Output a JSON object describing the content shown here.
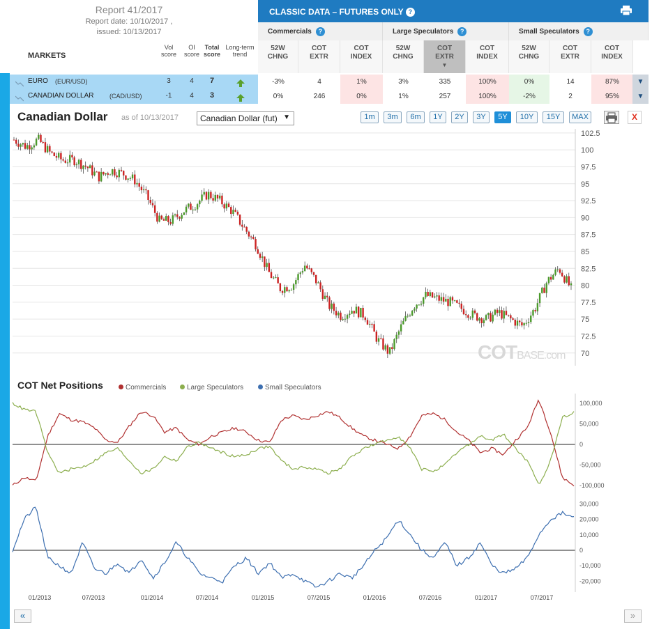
{
  "report": {
    "title": "Report 41/2017",
    "report_date": "Report date: 10/10/2017 ,",
    "issued": "issued: 10/13/2017"
  },
  "markets_label": "MARKETS",
  "left_columns": [
    {
      "l1": "Vol",
      "l2": "score"
    },
    {
      "l1": "OI",
      "l2": "score"
    },
    {
      "l1": "Total",
      "l2": "score"
    },
    {
      "l1": "Long-term",
      "l2": "trend"
    }
  ],
  "header": {
    "title": "CLASSIC DATA – FUTURES ONLY",
    "help": "?",
    "groups": [
      "Commercials",
      "Large Speculators",
      "Small Speculators"
    ],
    "subcolumns": [
      {
        "l1": "52W",
        "l2": "CHNG"
      },
      {
        "l1": "COT",
        "l2": "EXTR"
      },
      {
        "l1": "COT",
        "l2": "INDEX"
      },
      {
        "l1": "52W",
        "l2": "CHNG"
      },
      {
        "l1": "COT",
        "l2": "EXTR"
      },
      {
        "l1": "COT",
        "l2": "INDEX"
      },
      {
        "l1": "52W",
        "l2": "CHNG"
      },
      {
        "l1": "COT",
        "l2": "EXTR"
      },
      {
        "l1": "COT",
        "l2": "INDEX"
      }
    ]
  },
  "rows": [
    {
      "name": "EURO",
      "code": "(EUR/USD)",
      "vol": "3",
      "oi": "4",
      "total": "7",
      "trend": "up",
      "cells": [
        "-3%",
        "4",
        "1%",
        "3%",
        "335",
        "100%",
        "0%",
        "14",
        "87%"
      ]
    },
    {
      "name": "CANADIAN DOLLAR",
      "code": "(CAD/USD)",
      "vol": "-1",
      "oi": "4",
      "total": "3",
      "trend": "up",
      "cells": [
        "0%",
        "246",
        "0%",
        "1%",
        "257",
        "100%",
        "-2%",
        "2",
        "95%"
      ]
    }
  ],
  "chart_panel": {
    "title": "Canadian Dollar",
    "as_of": "as of 10/13/2017",
    "select_value": "Canadian Dollar (fut)",
    "ranges": [
      "1m",
      "3m",
      "6m",
      "1Y",
      "2Y",
      "3Y",
      "5Y",
      "10Y",
      "15Y",
      "MAX"
    ],
    "active_range": "5Y",
    "close": "X",
    "watermark_main": "COT",
    "watermark_sub": "BASE.com"
  },
  "colors": {
    "commercials": "#b03030",
    "large": "#8cae4e",
    "small": "#3d6fb0",
    "up_candle": "#4a9a2a",
    "down_candle": "#cc2222",
    "sidebar": "#1aa8e6",
    "header_blue": "#1f7bc1"
  },
  "nav": {
    "prev": "«",
    "next": "»"
  },
  "chart_data": [
    {
      "type": "line",
      "title": "Canadian Dollar",
      "ylabel": "",
      "y_ticks": [
        "102.5",
        "100",
        "97.5",
        "95",
        "92.5",
        "90",
        "87.5",
        "85",
        "82.5",
        "80",
        "77.5",
        "75",
        "72.5",
        "70"
      ],
      "ylim": [
        68,
        103.5
      ],
      "x_ticks": [
        "01/2013",
        "07/2013",
        "01/2014",
        "07/2014",
        "01/2015",
        "07/2015",
        "01/2016",
        "07/2016",
        "01/2017",
        "07/2017"
      ],
      "series": [
        {
          "values": [
            101.5,
            100.5,
            101.5,
            99.5,
            98.5,
            98.5,
            97.5,
            96,
            97,
            96.5,
            95.5,
            93,
            89.5,
            89.5,
            91,
            92,
            93.5,
            92.5,
            91,
            88.5,
            86,
            82,
            79.5,
            80,
            83,
            80.5,
            77,
            75.5,
            76.5,
            75.5,
            72,
            70,
            74,
            77,
            78.5,
            78,
            77.5,
            76.5,
            75.5,
            75,
            76,
            75,
            74,
            76.5,
            80.5,
            82.5,
            79.5
          ]
        }
      ],
      "grid": true
    },
    {
      "type": "line",
      "title": "COT Net Positions",
      "y_ticks": [
        "100,000",
        "50,000",
        "0",
        "-50,000",
        "-100,000"
      ],
      "ylim": [
        -110000,
        110000
      ],
      "series": [
        {
          "name": "Commercials",
          "values": [
            -100000,
            -80000,
            -90000,
            20000,
            75000,
            60000,
            55000,
            40000,
            10000,
            5000,
            45000,
            80000,
            70000,
            30000,
            40000,
            10000,
            0,
            20000,
            30000,
            40000,
            30000,
            10000,
            5000,
            60000,
            70000,
            60000,
            70000,
            80000,
            65000,
            40000,
            20000,
            10000,
            0,
            -10000,
            20000,
            70000,
            75000,
            60000,
            30000,
            10000,
            -20000,
            -10000,
            -25000,
            10000,
            40000,
            110000,
            30000,
            -80000,
            -100000
          ]
        },
        {
          "name": "Large Speculators",
          "values": [
            100000,
            85000,
            80000,
            -20000,
            -70000,
            -60000,
            -55000,
            -40000,
            -20000,
            -10000,
            -40000,
            -70000,
            -60000,
            -30000,
            -40000,
            -5000,
            5000,
            -10000,
            -20000,
            -30000,
            -25000,
            -10000,
            -5000,
            -40000,
            -60000,
            -55000,
            -60000,
            -70000,
            -60000,
            -30000,
            -10000,
            0,
            10000,
            20000,
            -10000,
            -60000,
            -65000,
            -50000,
            -20000,
            0,
            20000,
            10000,
            25000,
            -10000,
            -40000,
            -100000,
            -40000,
            65000,
            80000
          ]
        },
        {
          "name": "Small Speculators",
          "values": [
            0,
            20000,
            28000,
            -5000,
            -10000,
            -15000,
            5000,
            -12000,
            -15000,
            -8000,
            -15000,
            -5000,
            -18000,
            -8000,
            5000,
            -5000,
            -15000,
            -18000,
            -20000,
            -10000,
            -5000,
            -15000,
            -8000,
            -18000,
            -15000,
            -20000,
            -24000,
            -20000,
            -15000,
            -18000,
            -10000,
            0,
            8000,
            20000,
            10000,
            0,
            -5000,
            5000,
            -10000,
            -5000,
            5000,
            -10000,
            -15000,
            -12000,
            -5000,
            10000,
            20000,
            24000,
            21000
          ]
        }
      ],
      "legend_position": "top-left",
      "grid": false
    }
  ]
}
